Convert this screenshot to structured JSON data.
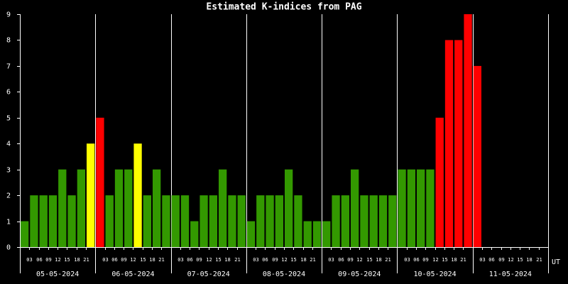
{
  "chart_data": {
    "type": "bar",
    "title": "Estimated K-indices from PAG",
    "days": [
      "05-05-2024",
      "06-05-2024",
      "07-05-2024",
      "08-05-2024",
      "09-05-2024",
      "10-05-2024",
      "11-05-2024"
    ],
    "hour_labels": [
      "03",
      "06",
      "09",
      "12",
      "15",
      "18",
      "21"
    ],
    "time_unit": "UT",
    "values": [
      1,
      2,
      2,
      2,
      3,
      2,
      3,
      4,
      5,
      2,
      3,
      3,
      4,
      2,
      3,
      2,
      2,
      2,
      1,
      2,
      2,
      3,
      2,
      2,
      1,
      2,
      2,
      2,
      3,
      2,
      1,
      1,
      1,
      2,
      2,
      3,
      2,
      2,
      2,
      2,
      3,
      3,
      3,
      3,
      5,
      8,
      8,
      9,
      7,
      null,
      null,
      null,
      null,
      null,
      null,
      null
    ],
    "colors": [
      "#339900",
      "#339900",
      "#339900",
      "#339900",
      "#339900",
      "#339900",
      "#339900",
      "#ffff00",
      "#ff0000",
      "#339900",
      "#339900",
      "#339900",
      "#ffff00",
      "#339900",
      "#339900",
      "#339900",
      "#339900",
      "#339900",
      "#339900",
      "#339900",
      "#339900",
      "#339900",
      "#339900",
      "#339900",
      "#339900",
      "#339900",
      "#339900",
      "#339900",
      "#339900",
      "#339900",
      "#339900",
      "#339900",
      "#339900",
      "#339900",
      "#339900",
      "#339900",
      "#339900",
      "#339900",
      "#339900",
      "#339900",
      "#339900",
      "#339900",
      "#339900",
      "#339900",
      "#ff0000",
      "#ff0000",
      "#ff0000",
      "#ff0000",
      "#ff0000",
      null,
      null,
      null,
      null,
      null,
      null,
      null
    ],
    "ylim": [
      0,
      9
    ],
    "yticks": [
      0,
      1,
      2,
      3,
      4,
      5,
      6,
      7,
      8,
      9
    ]
  }
}
